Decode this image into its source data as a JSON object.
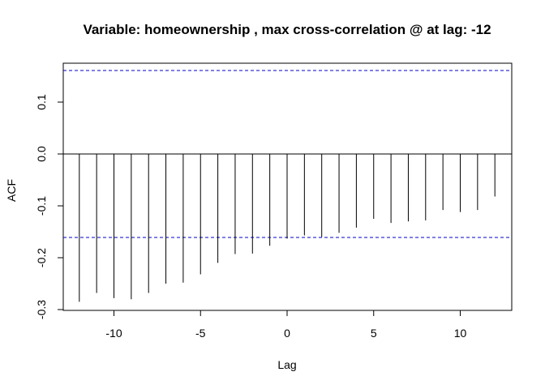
{
  "chart_data": {
    "type": "bar",
    "title": "Variable: homeownership , max cross-correlation @ at lag: -12",
    "xlabel": "Lag",
    "ylabel": "ACF",
    "xlim": [
      -12.96,
      12.96
    ],
    "ylim": [
      -0.3,
      0.17
    ],
    "x_ticks": [
      -10,
      -5,
      0,
      5,
      10
    ],
    "x_tick_labels": [
      "-10",
      "-5",
      "0",
      "5",
      "10"
    ],
    "y_ticks": [
      -0.3,
      -0.2,
      -0.1,
      0.0,
      0.1
    ],
    "y_tick_labels": [
      "-0.3",
      "-0.2",
      "-0.1",
      "0.0",
      "0.1"
    ],
    "confidence_bound": 0.161,
    "confidence_color": "#0000cc",
    "lags": [
      -12,
      -11,
      -10,
      -9,
      -8,
      -7,
      -6,
      -5,
      -4,
      -3,
      -2,
      -1,
      0,
      1,
      2,
      3,
      4,
      5,
      6,
      7,
      8,
      9,
      10,
      11,
      12
    ],
    "values": [
      -0.285,
      -0.268,
      -0.278,
      -0.28,
      -0.268,
      -0.25,
      -0.248,
      -0.232,
      -0.21,
      -0.193,
      -0.192,
      -0.177,
      -0.163,
      -0.157,
      -0.16,
      -0.152,
      -0.142,
      -0.125,
      -0.133,
      -0.13,
      -0.128,
      -0.108,
      -0.112,
      -0.108,
      -0.082
    ],
    "grid": false
  }
}
